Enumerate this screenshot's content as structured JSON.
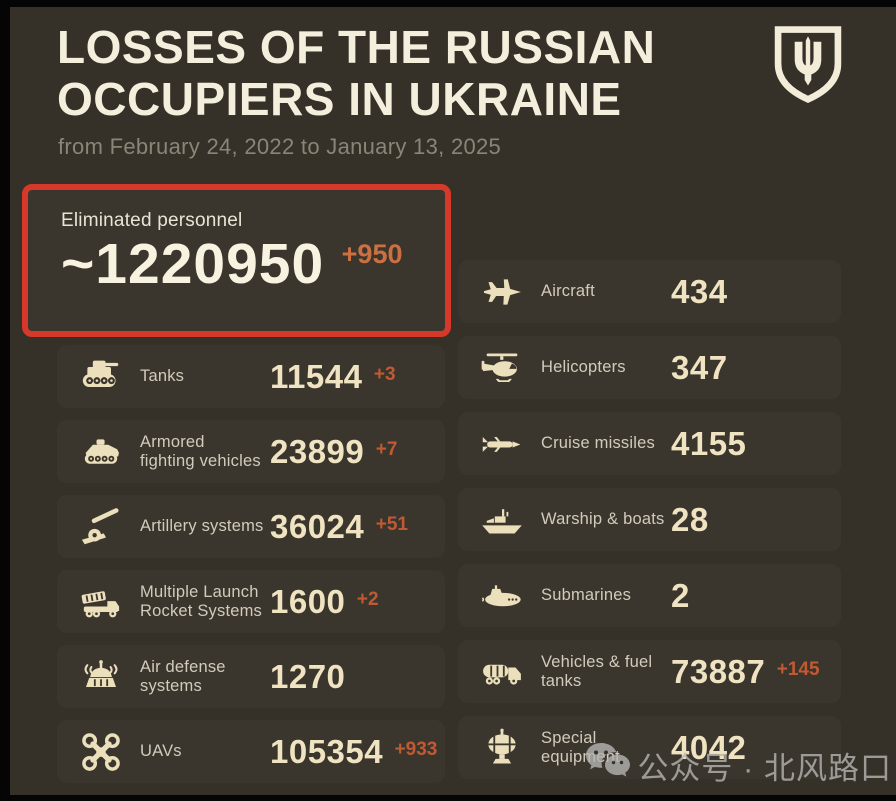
{
  "page": {
    "background": "#353028",
    "card_background": "#3b362d",
    "accent_red": "#d6392a",
    "cream": "#f0e3c2",
    "delta_orange": "#c05a33"
  },
  "header": {
    "title_line1": "LOSSES OF THE RUSSIAN",
    "title_line2": "OCCUPIERS IN UKRAINE",
    "subtitle": "from February 24, 2022 to January 13, 2025",
    "emblem": "ukraine-trident-shield"
  },
  "personnel": {
    "label": "Eliminated personnel",
    "value": "~1220950",
    "delta": "+950"
  },
  "columns": {
    "left": [
      {
        "icon": "tank-icon",
        "label": "Tanks",
        "value": "11544",
        "delta": "+3"
      },
      {
        "icon": "armored-vehicle-icon",
        "label": "Armored fighting vehicles",
        "value": "23899",
        "delta": "+7"
      },
      {
        "icon": "artillery-icon",
        "label": "Artillery systems",
        "value": "36024",
        "delta": "+51"
      },
      {
        "icon": "mlrs-icon",
        "label": "Multiple Launch Rocket Systems",
        "value": "1600",
        "delta": "+2"
      },
      {
        "icon": "air-defense-icon",
        "label": "Air defense systems",
        "value": "1270",
        "delta": ""
      },
      {
        "icon": "uav-icon",
        "label": "UAVs",
        "value": "105354",
        "delta": "+933"
      }
    ],
    "right": [
      {
        "icon": "aircraft-icon",
        "label": "Aircraft",
        "value": "434",
        "delta": ""
      },
      {
        "icon": "helicopter-icon",
        "label": "Helicopters",
        "value": "347",
        "delta": ""
      },
      {
        "icon": "cruise-missile-icon",
        "label": "Cruise missiles",
        "value": "4155",
        "delta": ""
      },
      {
        "icon": "warship-icon",
        "label": "Warship & boats",
        "value": "28",
        "delta": ""
      },
      {
        "icon": "submarine-icon",
        "label": "Submarines",
        "value": "2",
        "delta": ""
      },
      {
        "icon": "fuel-truck-icon",
        "label": "Vehicles & fuel tanks",
        "value": "73887",
        "delta": "+145"
      },
      {
        "icon": "special-equipment-icon",
        "label": "Special equipment",
        "value": "4042",
        "delta": ""
      }
    ]
  },
  "watermark": {
    "icon": "wechat-icon",
    "text": "公众号 · 北风路口"
  }
}
